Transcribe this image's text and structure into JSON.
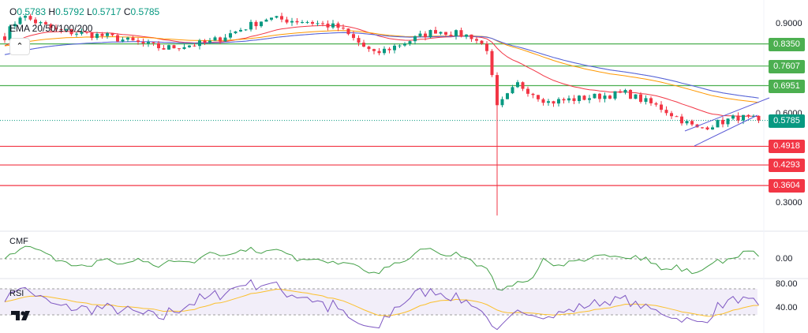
{
  "header": {
    "o_label": "O",
    "o": "0.5783",
    "h_label": "H",
    "h": "0.5792",
    "l_label": "L",
    "l": "0.5717",
    "c_label": "C",
    "c": "0.5785",
    "ema_label": "EMA 20/50/100/200"
  },
  "panes": {
    "cmf_label": "CMF",
    "rsi_label": "RSI",
    "logo": "TV"
  },
  "colors": {
    "up": "#089981",
    "down": "#f23645",
    "support": "#f23645",
    "resistance": "#4caf50",
    "current": "#089981",
    "ema20": "#f23645",
    "ema50": "#ff9800",
    "ema100": "#80deea",
    "ema200": "#5b5bd6",
    "cmf": "#43a047",
    "rsi": "#7e57c2",
    "rsi_ma": "#fbc02d"
  },
  "chart_data": {
    "type": "candlestick",
    "symbol_ohlc": {
      "open": 0.5783,
      "high": 0.5792,
      "low": 0.5717,
      "close": 0.5785
    },
    "ylim": [
      0.25,
      0.95
    ],
    "price_ticks": [
      "0.9000",
      "0.6000",
      "0.3000"
    ],
    "resistance_levels": [
      {
        "value": 0.835,
        "label": "0.8350"
      },
      {
        "value": 0.7607,
        "label": "0.7607"
      },
      {
        "value": 0.6951,
        "label": "0.6951"
      }
    ],
    "support_levels": [
      {
        "value": 0.4918,
        "label": "0.4918"
      },
      {
        "value": 0.4293,
        "label": "0.4293"
      },
      {
        "value": 0.3604,
        "label": "0.3604"
      }
    ],
    "current_price": {
      "value": 0.5785,
      "label": "0.5785"
    },
    "price_path": [
      [
        0,
        0.86
      ],
      [
        3,
        0.93
      ],
      [
        10,
        0.88
      ],
      [
        20,
        0.86
      ],
      [
        31,
        0.82
      ],
      [
        40,
        0.84
      ],
      [
        51,
        0.92
      ],
      [
        59,
        0.91
      ],
      [
        65,
        0.89
      ],
      [
        72,
        0.8
      ],
      [
        78,
        0.84
      ],
      [
        84,
        0.88
      ],
      [
        91,
        0.86
      ],
      [
        94,
        0.82
      ],
      [
        96,
        0.62
      ],
      [
        100,
        0.7
      ],
      [
        106,
        0.64
      ],
      [
        111,
        0.65
      ],
      [
        121,
        0.67
      ],
      [
        128,
        0.62
      ],
      [
        135,
        0.55
      ],
      [
        143,
        0.59
      ],
      [
        147,
        0.5785
      ]
    ],
    "spike_low": {
      "bar": 96,
      "value": 0.26
    },
    "cmf": {
      "ticks": [
        "0.00"
      ],
      "zero": 0
    },
    "rsi": {
      "ticks": [
        "80.00",
        "40.00"
      ],
      "band": [
        30,
        70
      ]
    }
  }
}
